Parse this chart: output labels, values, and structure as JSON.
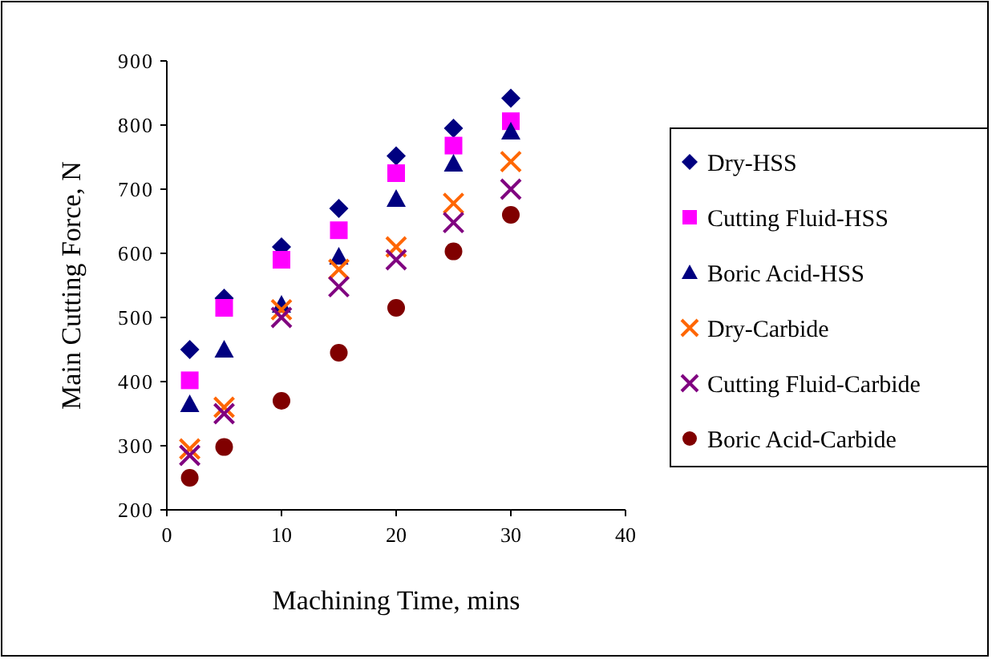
{
  "chart_data": {
    "type": "scatter",
    "xlabel": "Machining Time, mins",
    "ylabel": "Main Cutting Force, N",
    "x": [
      2,
      5,
      10,
      15,
      20,
      25,
      30
    ],
    "xlim": [
      0,
      40
    ],
    "xticks": [
      0,
      10,
      20,
      30,
      40
    ],
    "ylim": [
      200,
      900
    ],
    "yticks": [
      200,
      300,
      400,
      500,
      600,
      700,
      800,
      900
    ],
    "grid": false,
    "legend": "right",
    "series": [
      {
        "name": "Dry-HSS",
        "color": "#000080",
        "marker": "diamond",
        "values": [
          450,
          530,
          610,
          670,
          752,
          795,
          842
        ]
      },
      {
        "name": "Cutting Fluid-HSS",
        "color": "#ff00ff",
        "marker": "square",
        "values": [
          402,
          515,
          590,
          636,
          725,
          768,
          806
        ]
      },
      {
        "name": "Boric Acid-HSS",
        "color": "#000080",
        "marker": "triangle",
        "values": [
          365,
          450,
          520,
          595,
          685,
          740,
          790
        ]
      },
      {
        "name": "Dry-Carbide",
        "color": "#ff6600",
        "marker": "cross",
        "values": [
          295,
          360,
          512,
          575,
          610,
          678,
          743
        ]
      },
      {
        "name": "Cutting Fluid-Carbide",
        "color": "#800080",
        "marker": "cross",
        "values": [
          285,
          350,
          500,
          548,
          590,
          648,
          700
        ]
      },
      {
        "name": "Boric Acid-Carbide",
        "color": "#800000",
        "marker": "circle",
        "values": [
          250,
          298,
          370,
          445,
          515,
          603,
          660
        ]
      }
    ]
  }
}
